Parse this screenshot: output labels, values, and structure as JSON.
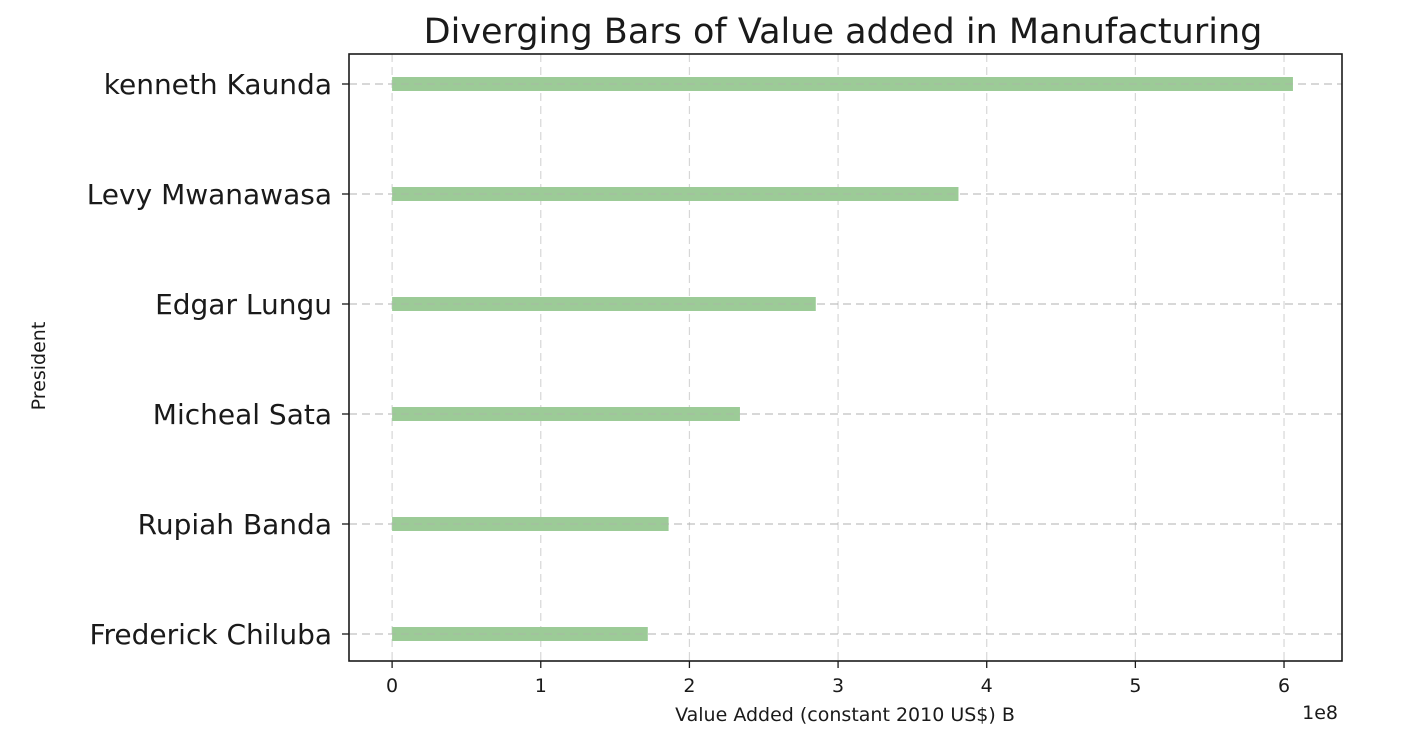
{
  "chart_data": {
    "type": "bar",
    "orientation": "horizontal",
    "title": "Diverging Bars of Value added in Manufacturing",
    "xlabel": "Value Added (constant 2010 US$) B",
    "ylabel": "President",
    "x_offset_label": "1e8",
    "x_ticks": [
      0,
      1,
      2,
      3,
      4,
      5,
      6
    ],
    "xlim": [
      -0.29,
      6.39
    ],
    "categories": [
      "kenneth Kaunda",
      "Levy Mwanawasa",
      "Edgar Lungu",
      "Micheal Sata",
      "Rupiah Banda",
      "Frederick Chiluba"
    ],
    "values": [
      6.06,
      3.81,
      2.85,
      2.34,
      1.86,
      1.72
    ],
    "value_multiplier": 100000000,
    "bar_color": "#9ccb97",
    "grid": true
  }
}
